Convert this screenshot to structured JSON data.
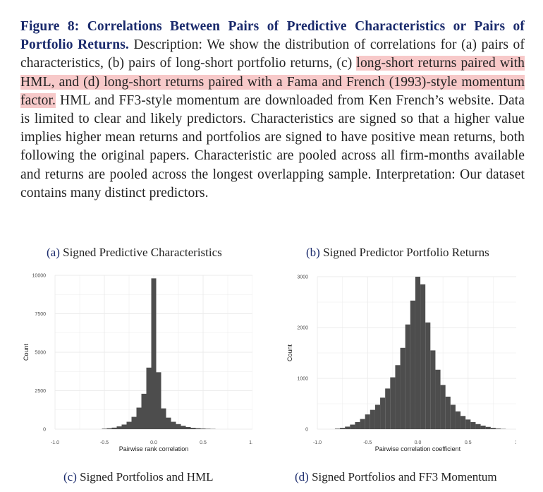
{
  "caption": {
    "title": "Figure 8: Correlations Between Pairs of Predictive Characteristics or Pairs of Portfolio Returns.",
    "text_before": " Description: We show the distribution of correlations for (a) pairs of characteristics, (b) pairs of long-short portfolio returns, (c) ",
    "highlighted": "long-short returns paired with HML, and (d) long-short returns paired with a Fama and French (1993)-style momentum factor.",
    "text_after": " HML and FF3-style momentum are downloaded from Ken French’s website. Data is limited to clear and likely predictors. Characteristics are signed so that a higher value implies higher mean returns and portfolios are signed to have positive mean returns, both following the original papers. Characteristic are pooled across all firm-months available and returns are pooled across the longest overlapping sample. Interpretation: Our dataset contains many distinct predictors."
  },
  "subfigures": [
    {
      "label": "(a)",
      "title": "Signed Predictive Characteristics"
    },
    {
      "label": "(b)",
      "title": "Signed Predictor Portfolio Returns"
    },
    {
      "label": "(c)",
      "title": "Signed Portfolios and HML"
    },
    {
      "label": "(d)",
      "title": "Signed Portfolios and FF3 Momentum"
    }
  ],
  "colors": {
    "bar": "#4d4d4d",
    "grid": "#ebebeb",
    "title": "#1a2a6c",
    "highlight": "#f7c9c9"
  },
  "chart_data": [
    {
      "type": "bar",
      "title": "Signed Predictive Characteristics",
      "xlabel": "Pairwise rank correlation",
      "ylabel": "Count",
      "xlim": [
        -1.0,
        1.0
      ],
      "ylim": [
        0,
        10000
      ],
      "xticks": [
        "-1.0",
        "-0.5",
        "0.0",
        "0.5",
        "1.0"
      ],
      "yticks": [
        "0",
        "2500",
        "5000",
        "7500",
        "10000"
      ],
      "bin_width": 0.05,
      "bin_centers": [
        -0.5,
        -0.45,
        -0.4,
        -0.35,
        -0.3,
        -0.25,
        -0.2,
        -0.15,
        -0.1,
        -0.05,
        0.0,
        0.05,
        0.1,
        0.15,
        0.2,
        0.25,
        0.3,
        0.35,
        0.4,
        0.45,
        0.5,
        0.55,
        0.6
      ],
      "values": [
        30,
        60,
        100,
        180,
        300,
        480,
        800,
        1400,
        2300,
        4000,
        9800,
        3700,
        1350,
        750,
        480,
        330,
        220,
        140,
        90,
        60,
        40,
        25,
        15
      ]
    },
    {
      "type": "bar",
      "title": "Signed Predictor Portfolio Returns",
      "xlabel": "Pairwise correlation coefficient",
      "ylabel": "Count",
      "xlim": [
        -1.0,
        1.0
      ],
      "ylim": [
        0,
        3000
      ],
      "xticks": [
        "-1.0",
        "-0.5",
        "0.0",
        "0.5",
        "1.0"
      ],
      "yticks": [
        "0",
        "1000",
        "2000",
        "3000"
      ],
      "bin_width": 0.05,
      "bin_centers": [
        -0.8,
        -0.75,
        -0.7,
        -0.65,
        -0.6,
        -0.55,
        -0.5,
        -0.45,
        -0.4,
        -0.35,
        -0.3,
        -0.25,
        -0.2,
        -0.15,
        -0.1,
        -0.05,
        0.0,
        0.05,
        0.1,
        0.15,
        0.2,
        0.25,
        0.3,
        0.35,
        0.4,
        0.45,
        0.5,
        0.55,
        0.6,
        0.65,
        0.7,
        0.75,
        0.8,
        0.85
      ],
      "values": [
        10,
        25,
        50,
        90,
        140,
        200,
        290,
        380,
        480,
        620,
        800,
        1020,
        1260,
        1600,
        2060,
        2530,
        3000,
        2850,
        2100,
        1550,
        1170,
        870,
        640,
        480,
        350,
        260,
        190,
        140,
        100,
        70,
        45,
        25,
        12,
        5
      ]
    }
  ]
}
